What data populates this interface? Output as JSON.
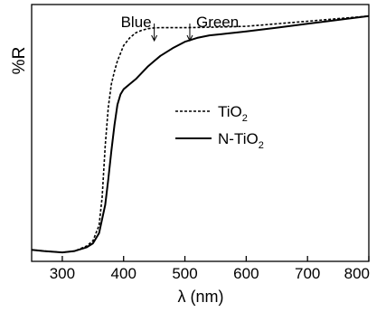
{
  "chart_data": {
    "type": "line",
    "title": "",
    "xlabel": "λ (nm)",
    "ylabel": "%R",
    "xlim": [
      250,
      800
    ],
    "ylim": [
      0,
      1
    ],
    "y_ticks_shown": false,
    "x_ticks": [
      "300",
      "400",
      "500",
      "600",
      "700",
      "800"
    ],
    "x_tick_values": [
      300,
      400,
      500,
      600,
      700,
      800
    ],
    "grid": false,
    "legend_placement": "center-right",
    "annotations": [
      {
        "text": "Blue",
        "x": 450,
        "arrow_to": 450
      },
      {
        "text": "Green",
        "x": 508,
        "arrow_to": 508
      }
    ],
    "series": [
      {
        "name_main": "TiO",
        "name_sub": "2",
        "style": "dashed",
        "x": [
          250,
          270,
          300,
          320,
          340,
          350,
          360,
          365,
          370,
          375,
          380,
          385,
          390,
          400,
          410,
          420,
          430,
          440,
          450,
          460,
          480,
          500,
          550,
          600,
          650,
          700,
          750,
          800
        ],
        "y": [
          0.045,
          0.04,
          0.035,
          0.04,
          0.06,
          0.08,
          0.14,
          0.25,
          0.45,
          0.6,
          0.69,
          0.74,
          0.78,
          0.84,
          0.87,
          0.89,
          0.9,
          0.906,
          0.909,
          0.91,
          0.91,
          0.91,
          0.912,
          0.915,
          0.925,
          0.935,
          0.945,
          0.955
        ]
      },
      {
        "name_main": "N-TiO",
        "name_sub": "2",
        "style": "solid",
        "x": [
          250,
          270,
          300,
          320,
          340,
          350,
          360,
          370,
          375,
          380,
          385,
          390,
          395,
          400,
          410,
          420,
          430,
          440,
          450,
          460,
          480,
          500,
          520,
          540,
          560,
          580,
          600,
          650,
          700,
          750,
          800
        ],
        "y": [
          0.045,
          0.04,
          0.035,
          0.04,
          0.055,
          0.07,
          0.11,
          0.22,
          0.32,
          0.43,
          0.53,
          0.61,
          0.65,
          0.67,
          0.69,
          0.71,
          0.735,
          0.76,
          0.78,
          0.8,
          0.83,
          0.855,
          0.87,
          0.88,
          0.885,
          0.89,
          0.895,
          0.91,
          0.925,
          0.94,
          0.955
        ]
      }
    ]
  }
}
